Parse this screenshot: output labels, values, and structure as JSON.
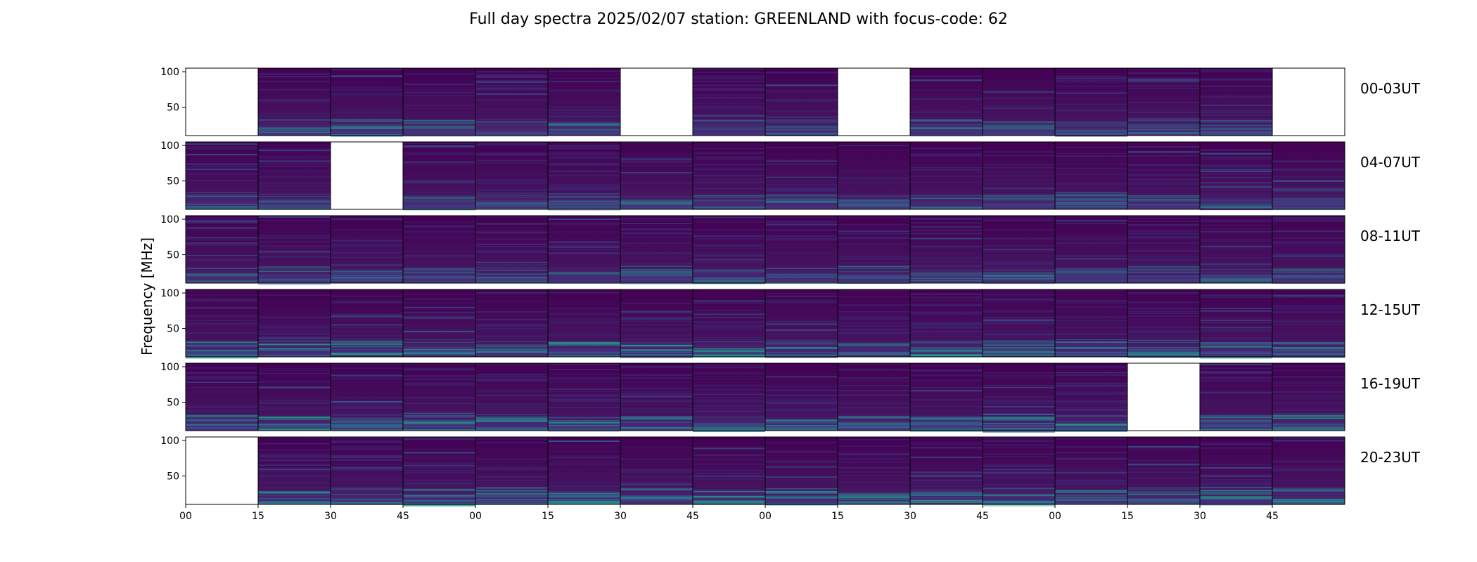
{
  "figure": {
    "title": "Full day spectra 2025/02/07 station: GREENLAND with focus-code: 62"
  },
  "chart_data": {
    "type": "heatmap",
    "title": "Full day spectra 2025/02/07 station: GREENLAND with focus-code: 62",
    "ylabel": "Frequency [MHz]",
    "xlabel": "",
    "y_ticks": [
      100,
      50
    ],
    "ylim": [
      10,
      105
    ],
    "x_tick_labels": [
      "00",
      "15",
      "30",
      "45",
      "00",
      "15",
      "30",
      "45",
      "00",
      "15",
      "30",
      "45",
      "00",
      "15",
      "30",
      "45"
    ],
    "colormap_colors": [
      "#440154",
      "#46327e",
      "#365c8d",
      "#277f8e",
      "#1fa187",
      "#4ac16d",
      "#a0da39",
      "#fde725"
    ],
    "rows": [
      {
        "label": "00-03UT",
        "panels_with_data": [
          false,
          true,
          true,
          true,
          true,
          true,
          false,
          true,
          true,
          false,
          true,
          true,
          true,
          true,
          true,
          false
        ]
      },
      {
        "label": "04-07UT",
        "panels_with_data": [
          true,
          true,
          false,
          true,
          true,
          true,
          true,
          true,
          true,
          true,
          true,
          true,
          true,
          true,
          true,
          true
        ]
      },
      {
        "label": "08-11UT",
        "panels_with_data": [
          true,
          true,
          true,
          true,
          true,
          true,
          true,
          true,
          true,
          true,
          true,
          true,
          true,
          true,
          true,
          true
        ]
      },
      {
        "label": "12-15UT",
        "panels_with_data": [
          true,
          true,
          true,
          true,
          true,
          true,
          true,
          true,
          true,
          true,
          true,
          true,
          true,
          true,
          true,
          true
        ]
      },
      {
        "label": "16-19UT",
        "panels_with_data": [
          true,
          true,
          true,
          true,
          true,
          true,
          true,
          true,
          true,
          true,
          true,
          true,
          true,
          false,
          true,
          true
        ]
      },
      {
        "label": "20-23UT",
        "panels_with_data": [
          false,
          true,
          true,
          true,
          true,
          true,
          true,
          true,
          true,
          true,
          true,
          true,
          true,
          true,
          true,
          true
        ]
      }
    ],
    "grid": false,
    "legend": false
  }
}
